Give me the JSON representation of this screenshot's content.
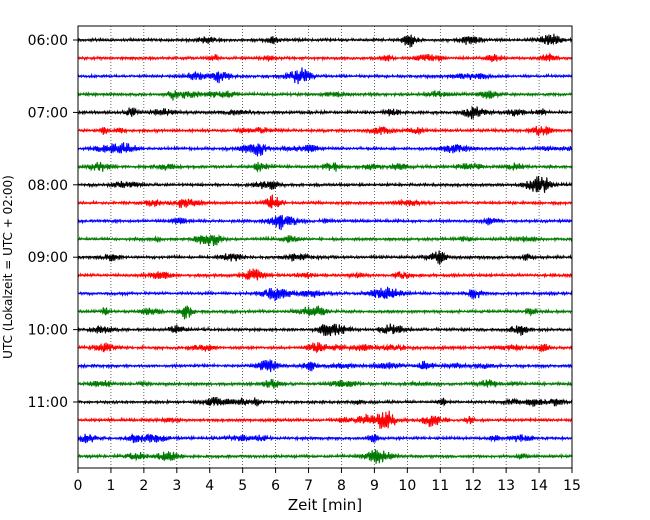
{
  "chart_data": {
    "type": "line",
    "title": "",
    "xlabel": "Zeit  [min]",
    "ylabel": "UTC (Lokalzeit = UTC + 02:00)",
    "xlim": [
      0,
      15
    ],
    "x_ticks": [
      0,
      1,
      2,
      3,
      4,
      5,
      6,
      7,
      8,
      9,
      10,
      11,
      12,
      13,
      14,
      15
    ],
    "x_tick_labels": [
      "0",
      "1",
      "2",
      "3",
      "4",
      "5",
      "6",
      "7",
      "8",
      "9",
      "10",
      "11",
      "12",
      "13",
      "14",
      "15"
    ],
    "y_ticks": [
      "06:00",
      "07:00",
      "08:00",
      "09:00",
      "10:00",
      "11:00"
    ],
    "grid": "vertical dotted lines at each minute",
    "trace_interval_min": 15,
    "colors": [
      "#000000",
      "#ff0000",
      "#0000ff",
      "#007a00"
    ],
    "series": [
      {
        "start": "06:00",
        "color": "#000000"
      },
      {
        "start": "06:15",
        "color": "#ff0000"
      },
      {
        "start": "06:30",
        "color": "#0000ff"
      },
      {
        "start": "06:45",
        "color": "#007a00"
      },
      {
        "start": "07:00",
        "color": "#000000"
      },
      {
        "start": "07:15",
        "color": "#ff0000"
      },
      {
        "start": "07:30",
        "color": "#0000ff"
      },
      {
        "start": "07:45",
        "color": "#007a00"
      },
      {
        "start": "08:00",
        "color": "#000000"
      },
      {
        "start": "08:15",
        "color": "#ff0000"
      },
      {
        "start": "08:30",
        "color": "#0000ff"
      },
      {
        "start": "08:45",
        "color": "#007a00"
      },
      {
        "start": "09:00",
        "color": "#000000"
      },
      {
        "start": "09:15",
        "color": "#ff0000"
      },
      {
        "start": "09:30",
        "color": "#0000ff"
      },
      {
        "start": "09:45",
        "color": "#007a00"
      },
      {
        "start": "10:00",
        "color": "#000000"
      },
      {
        "start": "10:15",
        "color": "#ff0000"
      },
      {
        "start": "10:30",
        "color": "#0000ff"
      },
      {
        "start": "10:45",
        "color": "#007a00"
      },
      {
        "start": "11:00",
        "color": "#000000"
      },
      {
        "start": "11:15",
        "color": "#ff0000"
      },
      {
        "start": "11:30",
        "color": "#0000ff"
      },
      {
        "start": "11:45",
        "color": "#007a00"
      }
    ]
  }
}
